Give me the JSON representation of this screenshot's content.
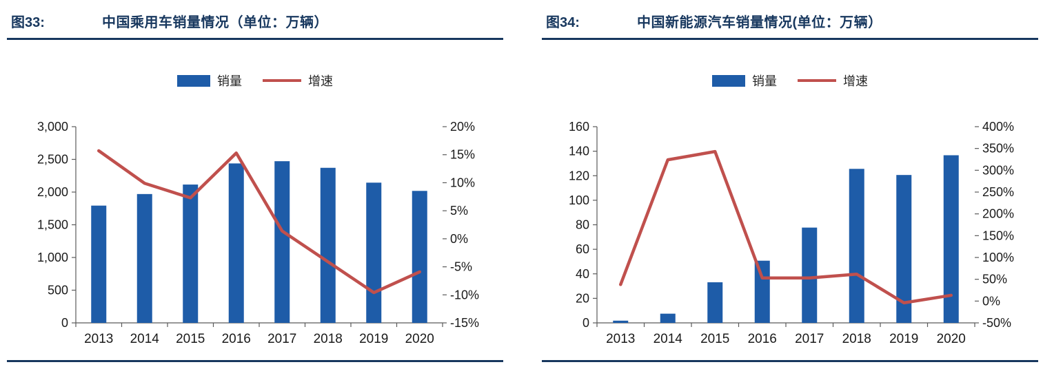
{
  "chart_data": [
    {
      "type": "bar+line",
      "fig_label": "图33:",
      "title": "中国乘用车销量情况（单位：万辆）",
      "legend": {
        "bar": "销量",
        "line": "增速"
      },
      "colors": {
        "bar": "#1E5CA8",
        "line": "#C0504D",
        "axis": "#595959",
        "rule": "#17375E"
      },
      "categories": [
        "2013",
        "2014",
        "2015",
        "2016",
        "2017",
        "2018",
        "2019",
        "2020"
      ],
      "series": [
        {
          "name": "销量",
          "type": "bar",
          "axis": "left",
          "values": [
            1793,
            1970,
            2115,
            2438,
            2472,
            2371,
            2144,
            2018
          ]
        },
        {
          "name": "增速",
          "type": "line",
          "axis": "right",
          "values": [
            15.7,
            9.9,
            7.3,
            15.3,
            1.4,
            -4.1,
            -9.6,
            -5.9
          ]
        }
      ],
      "left_axis": {
        "min": 0,
        "max": 3000,
        "step": 500,
        "format": "comma"
      },
      "right_axis": {
        "min": -15,
        "max": 20,
        "step": 5,
        "format": "percent"
      },
      "grid": false,
      "legend_position": "top-center"
    },
    {
      "type": "bar+line",
      "fig_label": "图34:",
      "title": "中国新能源汽车销量情况(单位：万辆）",
      "legend": {
        "bar": "销量",
        "line": "增速"
      },
      "colors": {
        "bar": "#1E5CA8",
        "line": "#C0504D",
        "axis": "#595959",
        "rule": "#17375E"
      },
      "categories": [
        "2013",
        "2014",
        "2015",
        "2016",
        "2017",
        "2018",
        "2019",
        "2020"
      ],
      "series": [
        {
          "name": "销量",
          "type": "bar",
          "axis": "left",
          "values": [
            1.8,
            7.5,
            33.1,
            50.7,
            77.7,
            125.6,
            120.6,
            136.7
          ]
        },
        {
          "name": "增速",
          "type": "line",
          "axis": "right",
          "values": [
            38,
            324,
            343,
            53,
            53,
            61.7,
            -4,
            13.3
          ]
        }
      ],
      "left_axis": {
        "min": 0,
        "max": 160,
        "step": 20,
        "format": "plain"
      },
      "right_axis": {
        "min": -50,
        "max": 400,
        "step": 50,
        "format": "percent"
      },
      "grid": false,
      "legend_position": "top-center"
    }
  ]
}
